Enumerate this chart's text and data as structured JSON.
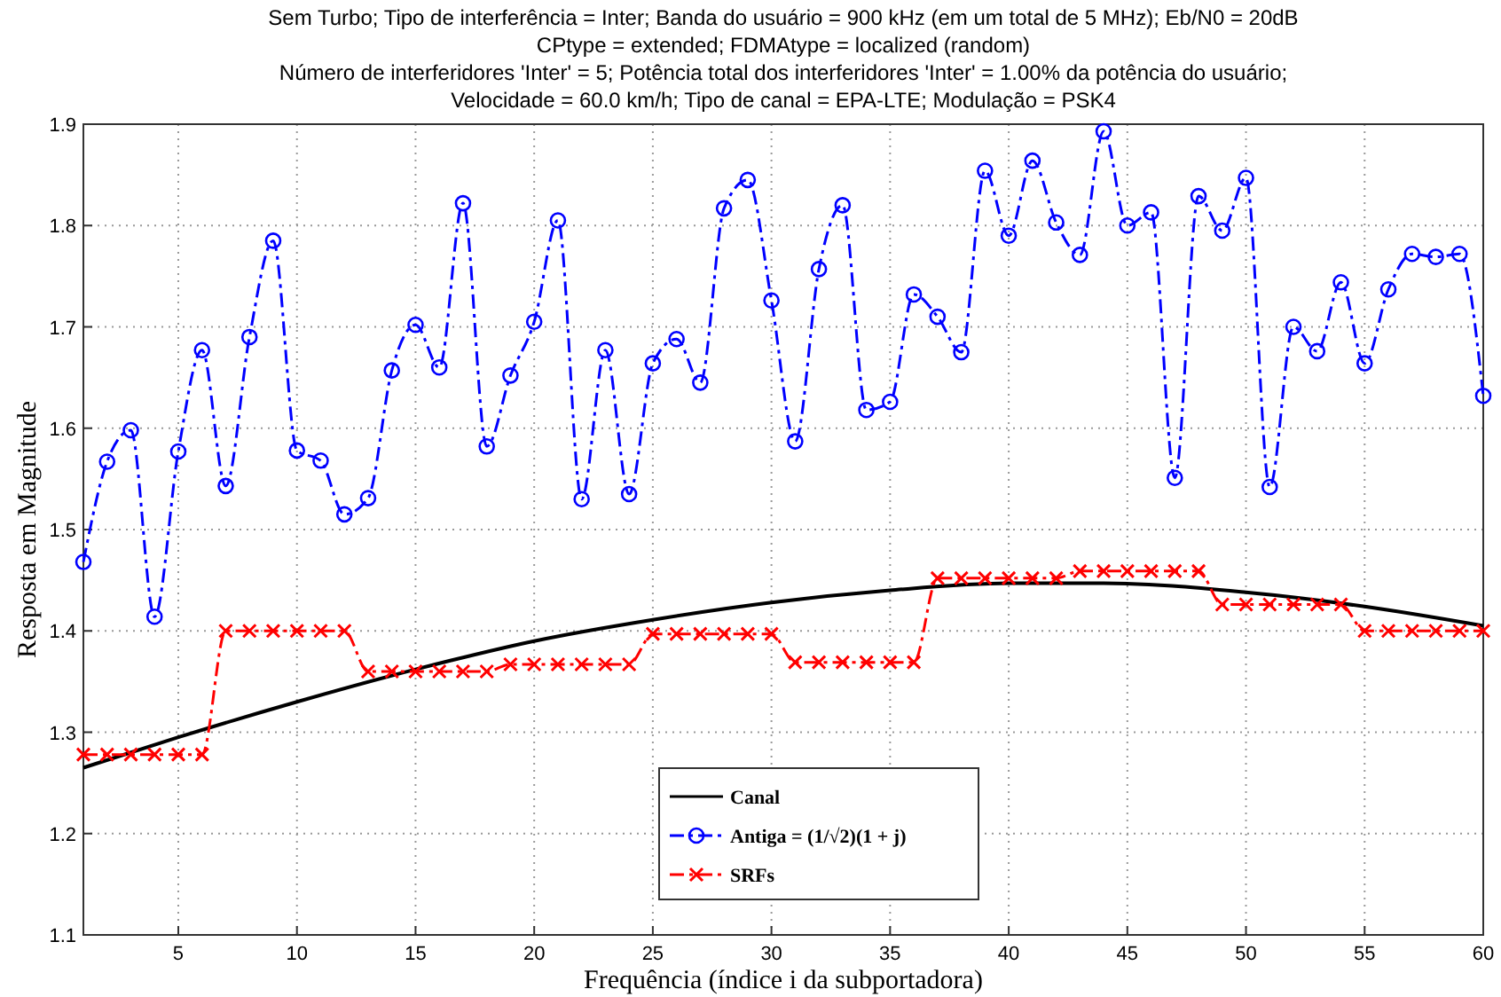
{
  "chart_data": {
    "type": "line",
    "title": "Sem Turbo; Tipo de interferência = Inter; Banda do usuário = 900 kHz (em um total de 5 MHz); Eb/N0 = 20dB\nCPtype = extended; FDMAtype = localized (random)\nNúmero de interferidores 'Inter' = 5; Potência total dos interferidores 'Inter' = 1.00% da potência do usuário;\nVelocidade = 60.0 km/h; Tipo de canal = EPA-LTE; Modulação = PSK4",
    "xlabel": "Frequência (índice i da subportadora)",
    "ylabel": "Resposta em Magnitude",
    "xlim": [
      1,
      60
    ],
    "ylim": [
      1.1,
      1.9
    ],
    "xticks": [
      5,
      10,
      15,
      20,
      25,
      30,
      35,
      40,
      45,
      50,
      55,
      60
    ],
    "yticks": [
      1.1,
      1.2,
      1.3,
      1.4,
      1.5,
      1.6,
      1.7,
      1.8,
      1.9
    ],
    "grid": true,
    "legend": "bottom",
    "series": [
      {
        "name": "Canal",
        "color": "#000000",
        "marker": "none",
        "line_style": "solid",
        "x": [
          1,
          5,
          10,
          15,
          20,
          25,
          30,
          35,
          40,
          44,
          50,
          55,
          60
        ],
        "values": [
          1.265,
          1.295,
          1.33,
          1.362,
          1.39,
          1.411,
          1.428,
          1.44,
          1.447,
          1.447,
          1.438,
          1.424,
          1.405
        ]
      },
      {
        "name": "Antiga = (1/√2)(1 + j)",
        "color": "#0000ff",
        "marker": "circle",
        "line_style": "dashed",
        "x": [
          1,
          2,
          3,
          4,
          5,
          6,
          7,
          8,
          9,
          10,
          11,
          12,
          13,
          14,
          15,
          16,
          17,
          18,
          19,
          20,
          21,
          22,
          23,
          24,
          25,
          26,
          27,
          28,
          29,
          30,
          31,
          32,
          33,
          34,
          35,
          36,
          37,
          38,
          39,
          40,
          41,
          42,
          43,
          44,
          45,
          46,
          47,
          48,
          49,
          50,
          51,
          52,
          53,
          54,
          55,
          56,
          57,
          58,
          59,
          60
        ],
        "values": [
          1.468,
          1.567,
          1.598,
          1.414,
          1.577,
          1.677,
          1.543,
          1.69,
          1.785,
          1.578,
          1.568,
          1.515,
          1.531,
          1.657,
          1.702,
          1.66,
          1.822,
          1.582,
          1.652,
          1.705,
          1.805,
          1.53,
          1.677,
          1.535,
          1.664,
          1.688,
          1.645,
          1.817,
          1.845,
          1.726,
          1.587,
          1.757,
          1.82,
          1.618,
          1.626,
          1.732,
          1.71,
          1.675,
          1.854,
          1.79,
          1.864,
          1.803,
          1.771,
          1.893,
          1.8,
          1.813,
          1.551,
          1.829,
          1.795,
          1.847,
          1.542,
          1.7,
          1.676,
          1.744,
          1.664,
          1.737,
          1.772,
          1.769,
          1.772,
          1.632
        ]
      },
      {
        "name": "SRFs",
        "color": "#ff0000",
        "marker": "cross",
        "line_style": "dashed",
        "x": [
          1,
          2,
          3,
          4,
          5,
          6,
          7,
          8,
          9,
          10,
          11,
          12,
          13,
          14,
          15,
          16,
          17,
          18,
          19,
          20,
          21,
          22,
          23,
          24,
          25,
          26,
          27,
          28,
          29,
          30,
          31,
          32,
          33,
          34,
          35,
          36,
          37,
          38,
          39,
          40,
          41,
          42,
          43,
          44,
          45,
          46,
          47,
          48,
          49,
          50,
          51,
          52,
          53,
          54,
          55,
          56,
          57,
          58,
          59,
          60
        ],
        "values": [
          1.278,
          1.278,
          1.278,
          1.278,
          1.278,
          1.278,
          1.4,
          1.4,
          1.4,
          1.4,
          1.4,
          1.4,
          1.36,
          1.36,
          1.36,
          1.36,
          1.36,
          1.36,
          1.367,
          1.367,
          1.367,
          1.367,
          1.367,
          1.367,
          1.397,
          1.397,
          1.397,
          1.397,
          1.397,
          1.397,
          1.369,
          1.369,
          1.369,
          1.369,
          1.369,
          1.369,
          1.452,
          1.452,
          1.452,
          1.452,
          1.452,
          1.452,
          1.459,
          1.459,
          1.459,
          1.459,
          1.459,
          1.459,
          1.426,
          1.426,
          1.426,
          1.426,
          1.426,
          1.426,
          1.4,
          1.4,
          1.4,
          1.4,
          1.4,
          1.4
        ]
      }
    ]
  }
}
